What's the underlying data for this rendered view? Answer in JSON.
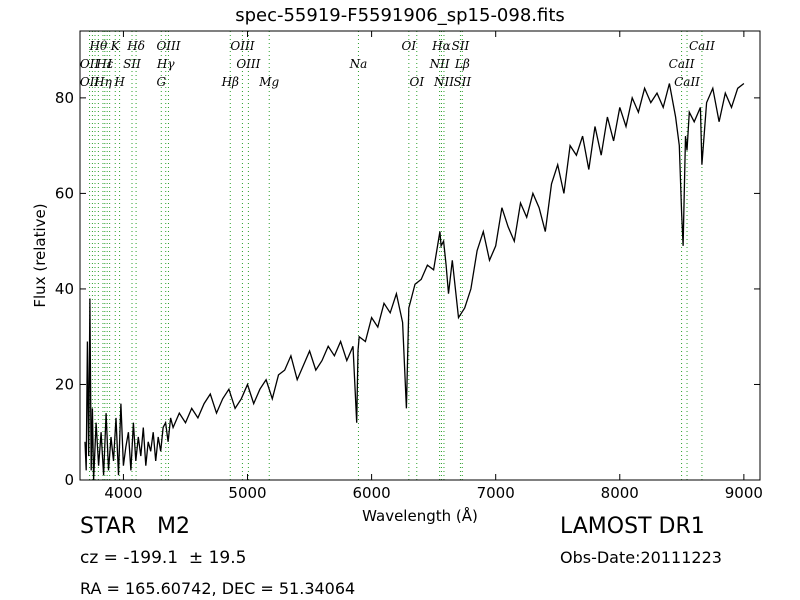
{
  "title": "spec-55919-F5591906_sp15-098.fits",
  "info": {
    "class_line": "STAR   M2",
    "survey": "LAMOST DR1",
    "cz": "cz = -199.1  ± 19.5",
    "obs_date": "Obs-Date:20111223",
    "radec": "RA = 165.60742, DEC = 51.34064"
  },
  "colors": {
    "spectrum": "#000000",
    "line_marker": "#2ca02c",
    "axis": "#000000"
  },
  "chart_data": {
    "type": "line",
    "xlabel": "Wavelength (Å)",
    "ylabel": "Flux (relative)",
    "xlim": [
      3650,
      9130
    ],
    "ylim": [
      0,
      94
    ],
    "xticks": [
      4000,
      5000,
      6000,
      7000,
      8000,
      9000
    ],
    "yticks": [
      0,
      20,
      40,
      60,
      80
    ],
    "grid": false,
    "spectrum": {
      "x": [
        3690,
        3700,
        3710,
        3720,
        3730,
        3740,
        3750,
        3760,
        3780,
        3800,
        3820,
        3840,
        3860,
        3880,
        3900,
        3920,
        3940,
        3960,
        3980,
        4000,
        4020,
        4040,
        4060,
        4080,
        4100,
        4120,
        4140,
        4160,
        4180,
        4200,
        4220,
        4240,
        4260,
        4280,
        4300,
        4320,
        4340,
        4360,
        4380,
        4400,
        4450,
        4500,
        4550,
        4600,
        4650,
        4700,
        4750,
        4800,
        4850,
        4900,
        4950,
        5000,
        5050,
        5100,
        5150,
        5200,
        5250,
        5300,
        5350,
        5400,
        5450,
        5500,
        5550,
        5600,
        5650,
        5700,
        5750,
        5800,
        5850,
        5880,
        5890,
        5900,
        5950,
        6000,
        6050,
        6100,
        6150,
        6200,
        6250,
        6280,
        6300,
        6320,
        6350,
        6400,
        6450,
        6500,
        6550,
        6560,
        6580,
        6600,
        6620,
        6650,
        6700,
        6750,
        6800,
        6850,
        6900,
        6950,
        7000,
        7050,
        7100,
        7150,
        7200,
        7250,
        7300,
        7350,
        7400,
        7450,
        7500,
        7550,
        7600,
        7650,
        7700,
        7750,
        7800,
        7850,
        7900,
        7950,
        8000,
        8050,
        8100,
        8150,
        8200,
        8250,
        8300,
        8350,
        8400,
        8450,
        8480,
        8498,
        8510,
        8530,
        8542,
        8560,
        8600,
        8650,
        8662,
        8700,
        8750,
        8800,
        8850,
        8900,
        8950,
        9000
      ],
      "y": [
        8,
        2,
        29,
        5,
        38,
        2,
        15,
        0,
        12,
        3,
        10,
        1,
        14,
        2,
        9,
        4,
        13,
        1,
        16,
        3,
        7,
        10,
        2,
        12,
        4,
        9,
        5,
        11,
        3,
        8,
        6,
        10,
        4,
        9,
        6,
        11,
        12,
        8,
        13,
        11,
        14,
        12,
        15,
        13,
        16,
        18,
        14,
        17,
        19,
        15,
        17,
        20,
        16,
        19,
        21,
        17,
        22,
        23,
        26,
        21,
        24,
        27,
        23,
        25,
        28,
        26,
        29,
        25,
        28,
        12,
        27,
        30,
        29,
        34,
        32,
        37,
        35,
        39,
        33,
        15,
        36,
        38,
        41,
        42,
        45,
        44,
        52,
        49,
        50,
        45,
        39,
        46,
        34,
        36,
        40,
        48,
        52,
        46,
        49,
        57,
        53,
        50,
        58,
        55,
        60,
        57,
        52,
        62,
        66,
        60,
        70,
        68,
        72,
        65,
        74,
        68,
        76,
        71,
        78,
        74,
        80,
        77,
        82,
        79,
        81,
        78,
        83,
        76,
        70,
        56,
        49,
        72,
        69,
        77,
        75,
        78,
        66,
        79,
        82,
        75,
        81,
        78,
        82,
        83
      ]
    },
    "line_markers": [
      {
        "label": "Hθ",
        "x": 3798,
        "row": 0
      },
      {
        "label": "OII",
        "x": 3727,
        "row": 1
      },
      {
        "label": "OII",
        "x": 3727,
        "row": 2
      },
      {
        "label": "K",
        "x": 3934,
        "row": 0
      },
      {
        "label": "Hε",
        "x": 3850,
        "row": 1
      },
      {
        "label": "Hη",
        "x": 3835,
        "row": 2
      },
      {
        "label": "Hδ",
        "x": 4102,
        "row": 0
      },
      {
        "label": "I",
        "x": 3890,
        "row": 1
      },
      {
        "label": "SII",
        "x": 4069,
        "row": 1
      },
      {
        "label": "H",
        "x": 3969,
        "row": 2
      },
      {
        "label": "OIII",
        "x": 4363,
        "row": 0
      },
      {
        "label": "Hγ",
        "x": 4341,
        "row": 1
      },
      {
        "label": "G",
        "x": 4305,
        "row": 2
      },
      {
        "label": "OIII",
        "x": 4959,
        "row": 0
      },
      {
        "label": "OIII",
        "x": 5007,
        "row": 1
      },
      {
        "label": "Hβ",
        "x": 4861,
        "row": 2
      },
      {
        "label": "Mg",
        "x": 5175,
        "row": 2
      },
      {
        "label": "Na",
        "x": 5894,
        "row": 1
      },
      {
        "label": "OI",
        "x": 6300,
        "row": 0
      },
      {
        "label": "OI",
        "x": 6364,
        "row": 2
      },
      {
        "label": "Hα",
        "x": 6563,
        "row": 0
      },
      {
        "label": "NII",
        "x": 6548,
        "row": 1
      },
      {
        "label": "NII",
        "x": 6583,
        "row": 2
      },
      {
        "label": "SII",
        "x": 6716,
        "row": 0
      },
      {
        "label": "Lβ",
        "x": 6731,
        "row": 1
      },
      {
        "label": "SII",
        "x": 6731,
        "row": 2
      },
      {
        "label": "CaII",
        "x": 8662,
        "row": 0
      },
      {
        "label": "CaII",
        "x": 8498,
        "row": 1
      },
      {
        "label": "CaII",
        "x": 8542,
        "row": 2
      }
    ],
    "line_marker_positions": [
      3727,
      3750,
      3771,
      3798,
      3835,
      3850,
      3869,
      3889,
      3934,
      3969,
      4069,
      4102,
      4305,
      4341,
      4363,
      4861,
      4959,
      5007,
      5175,
      5894,
      6300,
      6364,
      6548,
      6563,
      6583,
      6716,
      6731,
      8498,
      8542,
      8662
    ]
  }
}
